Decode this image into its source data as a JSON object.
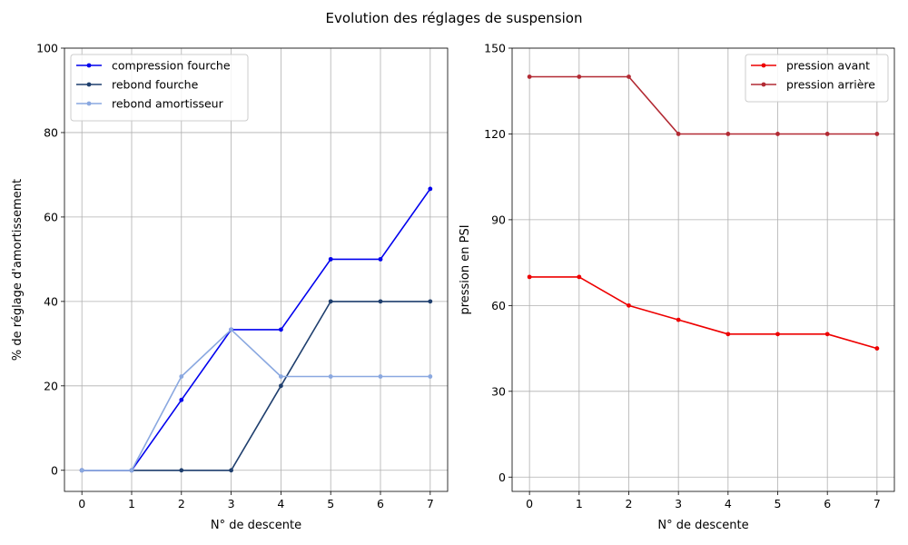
{
  "figure_title": "Evolution des réglages de suspension",
  "chart_data": [
    {
      "type": "line",
      "xlabel": "N° de descente",
      "ylabel": "% de réglage d'amortissement",
      "x": [
        0,
        1,
        2,
        3,
        4,
        5,
        6,
        7
      ],
      "xticks": [
        "0",
        "1",
        "2",
        "3",
        "4",
        "5",
        "6",
        "7"
      ],
      "xlim": [
        -0.35,
        7.35
      ],
      "yticks": [
        0,
        20,
        40,
        60,
        80,
        100
      ],
      "ylim": [
        -5,
        100
      ],
      "grid": true,
      "legend_position": "top-left",
      "series": [
        {
          "name": "compression fourche",
          "color": "#0000ee",
          "values": [
            0,
            0,
            16.67,
            33.33,
            33.33,
            50,
            50,
            66.67
          ]
        },
        {
          "name": "rebond fourche",
          "color": "#1f3f6e",
          "values": [
            0,
            0,
            0,
            0,
            20,
            40,
            40,
            40
          ]
        },
        {
          "name": "rebond amortisseur",
          "color": "#8aa8e0",
          "values": [
            0,
            0,
            22.22,
            33.33,
            22.22,
            22.22,
            22.22,
            22.22
          ]
        }
      ]
    },
    {
      "type": "line",
      "xlabel": "N° de descente",
      "ylabel": "pression en PSI",
      "x": [
        0,
        1,
        2,
        3,
        4,
        5,
        6,
        7
      ],
      "xticks": [
        "0",
        "1",
        "2",
        "3",
        "4",
        "5",
        "6",
        "7"
      ],
      "xlim": [
        -0.35,
        7.35
      ],
      "yticks": [
        0,
        30,
        60,
        90,
        120,
        150
      ],
      "ylim": [
        -5,
        150
      ],
      "grid": true,
      "legend_position": "top-right",
      "series": [
        {
          "name": "pression avant",
          "color": "#ee0000",
          "values": [
            70,
            70,
            60,
            55,
            50,
            50,
            50,
            45
          ]
        },
        {
          "name": "pression arrière",
          "color": "#b22a33",
          "values": [
            140,
            140,
            140,
            120,
            120,
            120,
            120,
            120
          ]
        }
      ]
    }
  ]
}
